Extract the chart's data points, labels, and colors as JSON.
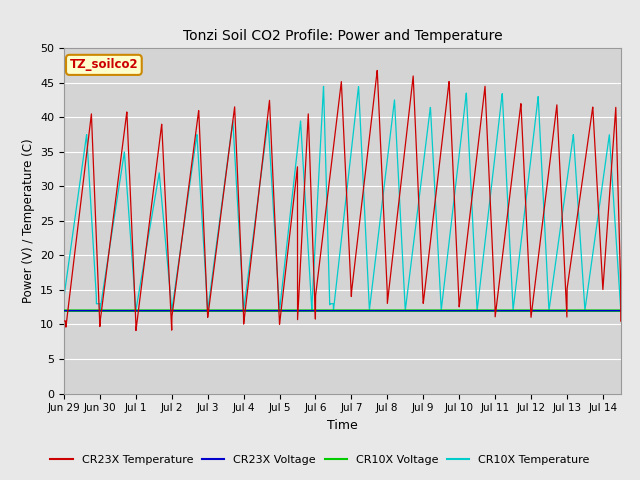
{
  "title": "Tonzi Soil CO2 Profile: Power and Temperature",
  "xlabel": "Time",
  "ylabel": "Power (V) / Temperature (C)",
  "ylim": [
    0,
    50
  ],
  "yticks": [
    0,
    5,
    10,
    15,
    20,
    25,
    30,
    35,
    40,
    45,
    50
  ],
  "annotation_text": "TZ_soilco2",
  "annotation_bbox_facecolor": "#ffffcc",
  "annotation_bbox_edgecolor": "#cc8800",
  "cr23x_temp_color": "#cc0000",
  "cr23x_volt_color": "#0000cc",
  "cr10x_volt_color": "#00cc00",
  "cr10x_temp_color": "#00cccc",
  "fig_facecolor": "#e8e8e8",
  "plot_facecolor": "#d4d4d4",
  "grid_color": "#ffffff",
  "legend_items": [
    "CR23X Temperature",
    "CR23X Voltage",
    "CR10X Voltage",
    "CR10X Temperature"
  ],
  "legend_colors": [
    "#cc0000",
    "#0000cc",
    "#00cc00",
    "#00cccc"
  ],
  "xlim": [
    0,
    15.5
  ],
  "voltage_level": 12.0,
  "cr23x_cycles": [
    [
      0.05,
      0.95,
      0.75,
      40.5,
      9.5
    ],
    [
      1.0,
      1.0,
      0.75,
      40.8,
      10.2
    ],
    [
      2.0,
      1.0,
      0.72,
      39.0,
      9.0
    ],
    [
      3.0,
      1.0,
      0.75,
      41.0,
      11.0
    ],
    [
      4.0,
      1.0,
      0.75,
      41.5,
      11.0
    ],
    [
      5.0,
      1.0,
      0.72,
      42.5,
      10.0
    ],
    [
      6.0,
      1.0,
      0.7,
      42.0,
      10.0
    ],
    [
      6.5,
      0.5,
      0.6,
      40.5,
      10.5
    ],
    [
      7.0,
      1.0,
      0.72,
      45.2,
      14.0
    ],
    [
      8.0,
      1.0,
      0.72,
      46.8,
      14.5
    ],
    [
      9.0,
      1.0,
      0.72,
      46.0,
      13.0
    ],
    [
      10.0,
      1.0,
      0.72,
      45.2,
      13.0
    ],
    [
      11.0,
      1.0,
      0.72,
      44.5,
      12.5
    ],
    [
      12.0,
      1.0,
      0.72,
      42.0,
      11.0
    ],
    [
      13.0,
      1.0,
      0.72,
      41.8,
      11.0
    ],
    [
      14.0,
      1.0,
      0.72,
      41.5,
      15.0
    ],
    [
      15.0,
      0.5,
      0.72,
      41.5,
      15.0
    ]
  ],
  "cr10x_cycles": [
    [
      0.0,
      0.9,
      0.7,
      37.5,
      14.0
    ],
    [
      1.0,
      1.0,
      0.68,
      35.0,
      12.0
    ],
    [
      2.0,
      1.0,
      0.65,
      32.0,
      12.0
    ],
    [
      3.0,
      1.0,
      0.7,
      37.5,
      12.0
    ],
    [
      4.0,
      1.0,
      0.7,
      39.5,
      12.0
    ],
    [
      5.0,
      1.0,
      0.68,
      39.5,
      12.0
    ],
    [
      6.0,
      0.9,
      0.65,
      39.5,
      12.0
    ],
    [
      6.9,
      0.5,
      0.65,
      44.5,
      12.5
    ],
    [
      7.5,
      1.0,
      0.7,
      44.5,
      12.0
    ],
    [
      8.5,
      1.0,
      0.7,
      42.5,
      12.0
    ],
    [
      9.5,
      1.0,
      0.7,
      41.5,
      12.0
    ],
    [
      10.5,
      1.0,
      0.7,
      43.5,
      12.0
    ],
    [
      11.5,
      1.0,
      0.7,
      43.5,
      12.0
    ],
    [
      12.5,
      1.0,
      0.7,
      43.0,
      12.0
    ],
    [
      13.5,
      1.0,
      0.68,
      37.5,
      12.0
    ],
    [
      14.5,
      1.0,
      0.68,
      37.5,
      12.0
    ]
  ]
}
